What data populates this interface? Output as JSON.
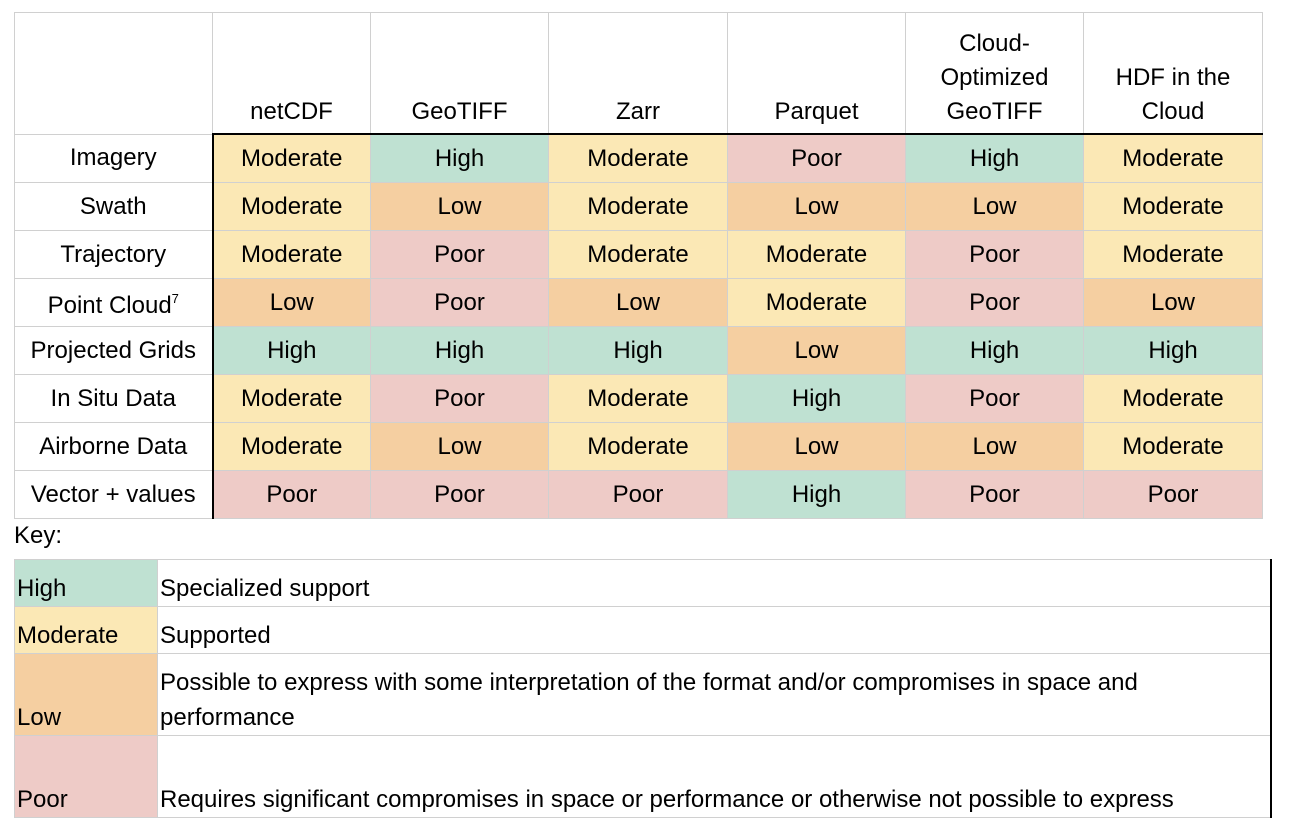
{
  "table": {
    "columns": [
      "netCDF",
      "GeoTIFF",
      "Zarr",
      "Parquet",
      "Cloud-Optimized GeoTIFF",
      "HDF in the Cloud"
    ],
    "rows": [
      {
        "label": "Imagery",
        "cells": [
          "Moderate",
          "High",
          "Moderate",
          "Poor",
          "High",
          "Moderate"
        ]
      },
      {
        "label": "Swath",
        "cells": [
          "Moderate",
          "Low",
          "Moderate",
          "Low",
          "Low",
          "Moderate"
        ]
      },
      {
        "label": "Trajectory",
        "cells": [
          "Moderate",
          "Poor",
          "Moderate",
          "Moderate",
          "Poor",
          "Moderate"
        ]
      },
      {
        "label": "Point Cloud",
        "footnote": "7",
        "cells": [
          "Low",
          "Poor",
          "Low",
          "Moderate",
          "Poor",
          "Low"
        ]
      },
      {
        "label": "Projected Grids",
        "cells": [
          "High",
          "High",
          "High",
          "Low",
          "High",
          "High"
        ]
      },
      {
        "label": "In Situ Data",
        "cells": [
          "Moderate",
          "Poor",
          "Moderate",
          "High",
          "Poor",
          "Moderate"
        ]
      },
      {
        "label": "Airborne Data",
        "cells": [
          "Moderate",
          "Low",
          "Moderate",
          "Low",
          "Low",
          "Moderate"
        ]
      },
      {
        "label": "Vector + values",
        "cells": [
          "Poor",
          "Poor",
          "Poor",
          "High",
          "Poor",
          "Poor"
        ]
      }
    ]
  },
  "key": {
    "title": "Key:",
    "rows": [
      {
        "label": "High",
        "description": "Specialized support",
        "color": "#bfe1d2"
      },
      {
        "label": "Moderate",
        "description": "Supported",
        "color": "#fbe8b5"
      },
      {
        "label": "Low",
        "description": "Possible to express with some interpretation of the format and/or compromises in space and performance",
        "color": "#f5cfa1"
      },
      {
        "label": "Poor",
        "description": "Requires significant compromises in space or performance or otherwise not possible to express",
        "color": "#eecbc7"
      }
    ]
  }
}
